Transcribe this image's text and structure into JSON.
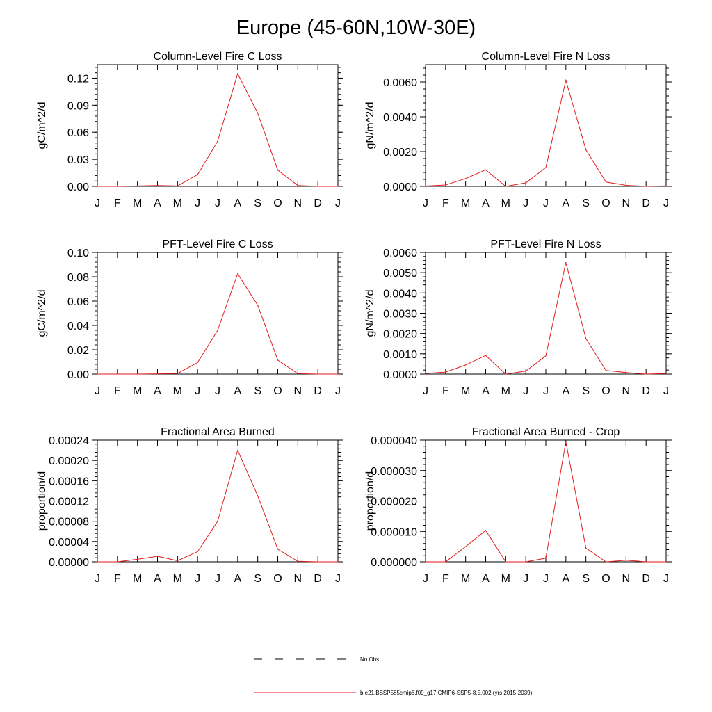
{
  "page_title": "Europe (45-60N,10W-30E)",
  "colors": {
    "series": "#e31a1c",
    "axis": "#000000",
    "obs": "#000000"
  },
  "legend": {
    "obs_label": "No Obs",
    "model_label": "b.e21.BSSP585cmip6.f09_g17.CMIP6-SSP5-8.5.002 (yrs 2015-2039)"
  },
  "chart_data": [
    {
      "type": "line",
      "title": "Column-Level Fire C Loss",
      "ylabel": "gC/m^2/d",
      "categories": [
        "J",
        "F",
        "M",
        "A",
        "M",
        "J",
        "J",
        "A",
        "S",
        "O",
        "N",
        "D",
        "J"
      ],
      "ylim": [
        0,
        0.135
      ],
      "yticks": [
        "0.00",
        "0.03",
        "0.06",
        "0.09",
        "0.12"
      ],
      "series": [
        {
          "name": "b.e21.BSSP585cmip6.f09_g17.CMIP6-SSP5-8.5.002 (yrs 2015-2039)",
          "values": [
            0.0,
            0.0,
            0.0005,
            0.001,
            0.0005,
            0.013,
            0.05,
            0.125,
            0.081,
            0.018,
            0.001,
            0.0,
            0.0
          ]
        }
      ]
    },
    {
      "type": "line",
      "title": "Column-Level Fire N Loss",
      "ylabel": "gN/m^2/d",
      "categories": [
        "J",
        "F",
        "M",
        "A",
        "M",
        "J",
        "J",
        "A",
        "S",
        "O",
        "N",
        "D",
        "J"
      ],
      "ylim": [
        0,
        0.007
      ],
      "yticks": [
        "0.0000",
        "0.0020",
        "0.0040",
        "0.0060"
      ],
      "series": [
        {
          "name": "b.e21.BSSP585cmip6.f09_g17.CMIP6-SSP5-8.5.002 (yrs 2015-2039)",
          "values": [
            2e-05,
            8e-05,
            0.00045,
            0.00095,
            0.0,
            0.0002,
            0.00108,
            0.0061,
            0.0021,
            0.00025,
            6e-05,
            0.0,
            3e-05
          ]
        }
      ]
    },
    {
      "type": "line",
      "title": "PFT-Level Fire C Loss",
      "ylabel": "gC/m^2/d",
      "categories": [
        "J",
        "F",
        "M",
        "A",
        "M",
        "J",
        "J",
        "A",
        "S",
        "O",
        "N",
        "D",
        "J"
      ],
      "ylim": [
        0,
        0.1
      ],
      "yticks": [
        "0.00",
        "0.02",
        "0.04",
        "0.06",
        "0.08",
        "0.10"
      ],
      "series": [
        {
          "name": "b.e21.BSSP585cmip6.f09_g17.CMIP6-SSP5-8.5.002 (yrs 2015-2039)",
          "values": [
            0.0,
            0.0,
            0.0,
            0.0002,
            0.0005,
            0.0095,
            0.036,
            0.0825,
            0.0565,
            0.0115,
            0.0004,
            0.0,
            0.0
          ]
        }
      ]
    },
    {
      "type": "line",
      "title": "PFT-Level Fire N Loss",
      "ylabel": "gN/m^2/d",
      "categories": [
        "J",
        "F",
        "M",
        "A",
        "M",
        "J",
        "J",
        "A",
        "S",
        "O",
        "N",
        "D",
        "J"
      ],
      "ylim": [
        0,
        0.006
      ],
      "yticks": [
        "0.0000",
        "0.0010",
        "0.0020",
        "0.0030",
        "0.0040",
        "0.0050",
        "0.0060"
      ],
      "series": [
        {
          "name": "b.e21.BSSP585cmip6.f09_g17.CMIP6-SSP5-8.5.002 (yrs 2015-2039)",
          "values": [
            3e-05,
            0.0001,
            0.00045,
            0.00092,
            0.0,
            0.00015,
            0.0009,
            0.0055,
            0.00175,
            0.00018,
            8e-05,
            0.0,
            3e-05
          ]
        }
      ]
    },
    {
      "type": "line",
      "title": "Fractional Area Burned",
      "ylabel": "proportion/d",
      "categories": [
        "J",
        "F",
        "M",
        "A",
        "M",
        "J",
        "J",
        "A",
        "S",
        "O",
        "N",
        "D",
        "J"
      ],
      "ylim": [
        0,
        0.00024
      ],
      "yticks": [
        "0.00000",
        "0.00004",
        "0.00008",
        "0.00012",
        "0.00016",
        "0.00020",
        "0.00024"
      ],
      "series": [
        {
          "name": "b.e21.BSSP585cmip6.f09_g17.CMIP6-SSP5-8.5.002 (yrs 2015-2039)",
          "values": [
            0.0,
            0.0,
            5e-06,
            1.1e-05,
            2e-06,
            2e-05,
            8e-05,
            0.00022,
            0.00013,
            2.5e-05,
            1e-06,
            0.0,
            0.0
          ]
        }
      ]
    },
    {
      "type": "line",
      "title": "Fractional Area Burned - Crop",
      "ylabel": "proportion/d",
      "categories": [
        "J",
        "F",
        "M",
        "A",
        "M",
        "J",
        "J",
        "A",
        "S",
        "O",
        "N",
        "D",
        "J"
      ],
      "ylim": [
        0,
        4e-05
      ],
      "yticks": [
        "0.000000",
        "0.000010",
        "0.000020",
        "0.000030",
        "0.000040"
      ],
      "series": [
        {
          "name": "b.e21.BSSP585cmip6.f09_g17.CMIP6-SSP5-8.5.002 (yrs 2015-2039)",
          "values": [
            0.0,
            0.0,
            5e-06,
            1.03e-05,
            0.0,
            0.0,
            1.2e-06,
            3.95e-05,
            4.5e-06,
            0.0,
            5e-07,
            0.0,
            0.0
          ]
        }
      ]
    }
  ]
}
